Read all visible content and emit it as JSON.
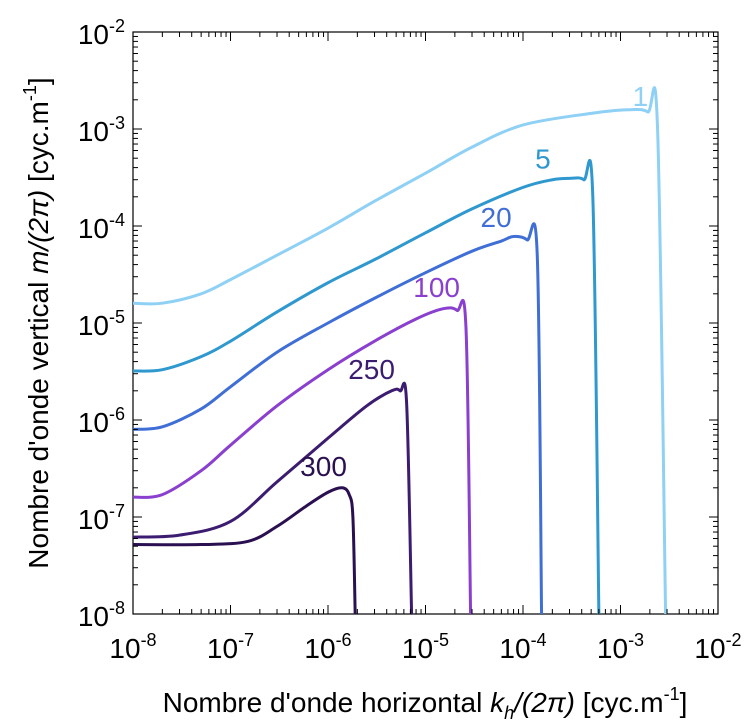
{
  "chart_data": {
    "type": "line",
    "xlabel": "Nombre d'onde horizontal k_h/(2π) [cyc.m⁻¹]",
    "ylabel": "Nombre d'onde vertical m/(2π) [cyc.m⁻¹]",
    "xscale": "log",
    "yscale": "log",
    "xlim": [
      1e-08,
      0.01
    ],
    "ylim": [
      1e-08,
      0.01
    ],
    "grid": false,
    "legend": "none",
    "x_tick_exponents": [
      "-8",
      "-7",
      "-6",
      "-5",
      "-4",
      "-3",
      "-2"
    ],
    "y_tick_exponents": [
      "-8",
      "-7",
      "-6",
      "-5",
      "-4",
      "-3",
      "-2"
    ],
    "tick_base": "10",
    "series": [
      {
        "name": "1",
        "color": "#8fd0f5",
        "label_pos": [
          0.0016,
          0.0015
        ],
        "points": [
          [
            1e-08,
            1.6e-05
          ],
          [
            2e-08,
            1.6e-05
          ],
          [
            5e-08,
            2e-05
          ],
          [
            1e-07,
            2.8e-05
          ],
          [
            3e-07,
            5e-05
          ],
          [
            1e-06,
            9.5e-05
          ],
          [
            3e-06,
            0.00018
          ],
          [
            1e-05,
            0.00035
          ],
          [
            3e-05,
            0.00065
          ],
          [
            0.0001,
            0.0011
          ],
          [
            0.0005,
            0.00145
          ],
          [
            0.0012,
            0.00158
          ],
          [
            0.0019,
            0.0015
          ],
          [
            0.0024,
            0.001
          ],
          [
            0.0029,
            1e-08
          ]
        ]
      },
      {
        "name": "5",
        "color": "#2f98cf",
        "label_pos": [
          0.00016,
          0.00034
        ],
        "points": [
          [
            1e-08,
            3.2e-06
          ],
          [
            2e-08,
            3.3e-06
          ],
          [
            5e-08,
            4.5e-06
          ],
          [
            1e-07,
            6.5e-06
          ],
          [
            3e-07,
            1.3e-05
          ],
          [
            1e-06,
            2.6e-05
          ],
          [
            3e-06,
            4.5e-05
          ],
          [
            1e-05,
            8.5e-05
          ],
          [
            3e-05,
            0.00015
          ],
          [
            0.0001,
            0.00025
          ],
          [
            0.0002,
            0.0003
          ],
          [
            0.0003,
            0.00031
          ],
          [
            0.00042,
            0.0003
          ],
          [
            0.00052,
            0.0002
          ],
          [
            0.0006,
            1e-08
          ]
        ]
      },
      {
        "name": "20",
        "color": "#3f6fd6",
        "label_pos": [
          5.3e-05,
          8.5e-05
        ],
        "points": [
          [
            1e-08,
            8e-07
          ],
          [
            2e-08,
            8.5e-07
          ],
          [
            5e-08,
            1.3e-06
          ],
          [
            1e-07,
            2.2e-06
          ],
          [
            3e-07,
            5e-06
          ],
          [
            1e-06,
            1e-05
          ],
          [
            3e-06,
            1.8e-05
          ],
          [
            1e-05,
            3.3e-05
          ],
          [
            3e-05,
            5.5e-05
          ],
          [
            6e-05,
            7e-05
          ],
          [
            8e-05,
            7.8e-05
          ],
          [
            0.00011,
            7.2e-05
          ],
          [
            0.00014,
            5e-05
          ],
          [
            0.000155,
            1e-08
          ]
        ]
      },
      {
        "name": "100",
        "color": "#8a3fcf",
        "label_pos": [
          1.3e-05,
          1.6e-05
        ],
        "points": [
          [
            1e-08,
            1.6e-07
          ],
          [
            2e-08,
            1.7e-07
          ],
          [
            5e-08,
            3e-07
          ],
          [
            1e-07,
            5.5e-07
          ],
          [
            3e-07,
            1.4e-06
          ],
          [
            1e-06,
            3.3e-06
          ],
          [
            3e-06,
            6.5e-06
          ],
          [
            8e-06,
            1.1e-05
          ],
          [
            1.5e-05,
            1.4e-05
          ],
          [
            2.1e-05,
            1.35e-05
          ],
          [
            2.6e-05,
            9e-06
          ],
          [
            2.9e-05,
            1e-08
          ]
        ]
      },
      {
        "name": "250",
        "color": "#3c1c70",
        "label_pos": [
          2.8e-06,
          2.3e-06
        ],
        "points": [
          [
            1e-08,
            6.2e-08
          ],
          [
            3e-08,
            6.5e-08
          ],
          [
            1e-07,
            9e-08
          ],
          [
            3e-07,
            2.3e-07
          ],
          [
            1e-06,
            6.5e-07
          ],
          [
            2.5e-06,
            1.4e-06
          ],
          [
            4.5e-06,
            2e-06
          ],
          [
            5.5e-06,
            2e-06
          ],
          [
            6.4e-06,
            1.5e-06
          ],
          [
            7.2e-06,
            1e-08
          ]
        ]
      },
      {
        "name": "300",
        "color": "#2a1050",
        "label_pos": [
          9e-07,
          2.3e-07
        ],
        "points": [
          [
            1e-08,
            5.2e-08
          ],
          [
            5e-08,
            5.2e-08
          ],
          [
            1.5e-07,
            5.6e-08
          ],
          [
            3e-07,
            8e-08
          ],
          [
            6e-07,
            1.3e-07
          ],
          [
            1e-06,
            1.8e-07
          ],
          [
            1.4e-06,
            2e-07
          ],
          [
            1.65e-06,
            1.7e-07
          ],
          [
            1.8e-06,
            1e-07
          ],
          [
            1.9e-06,
            1e-08
          ]
        ]
      }
    ]
  }
}
